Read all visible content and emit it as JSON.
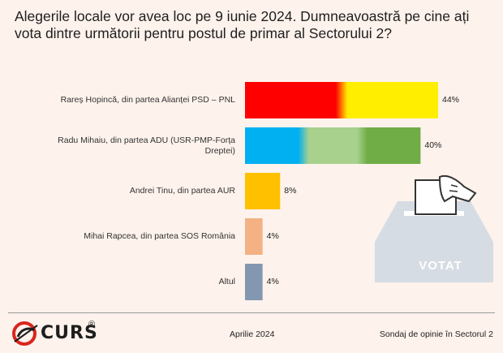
{
  "title": "Alegerile locale vor avea loc pe 9 iunie 2024. Dumneavoastră pe cine ați vota dintre următorii pentru postul de primar al Sectorului 2?",
  "chart_data": {
    "type": "bar",
    "orientation": "horizontal",
    "categories": [
      "Rareș Hopincă, din partea Alianței PSD – PNL",
      "Radu Mihaiu, din partea ADU (USR-PMP-Forța Dreptei)",
      "Andrei Tinu, din partea AUR",
      "Mihai Rapcea, din partea SOS România",
      "Altul"
    ],
    "values": [
      44,
      40,
      8,
      4,
      4
    ],
    "value_labels": [
      "44%",
      "40%",
      "8%",
      "4%",
      "4%"
    ],
    "unit": "%",
    "bar_colors": [
      [
        "#ff0000",
        "#ffee00"
      ],
      [
        "#00b0f0",
        "#a9d18e",
        "#70ad47"
      ],
      [
        "#ffc000"
      ],
      [
        "#f4b183"
      ],
      [
        "#8497b0"
      ]
    ],
    "xlim": [
      0,
      50
    ],
    "grid": false,
    "legend": "none"
  },
  "ballot_box": {
    "label": "VOTAT",
    "color": "#d6dce4"
  },
  "footer": {
    "logo_text": "CURS",
    "logo_mark": "®",
    "date": "Aprilie 2024",
    "survey": "Sondaj de opinie în Sectorul 2"
  }
}
